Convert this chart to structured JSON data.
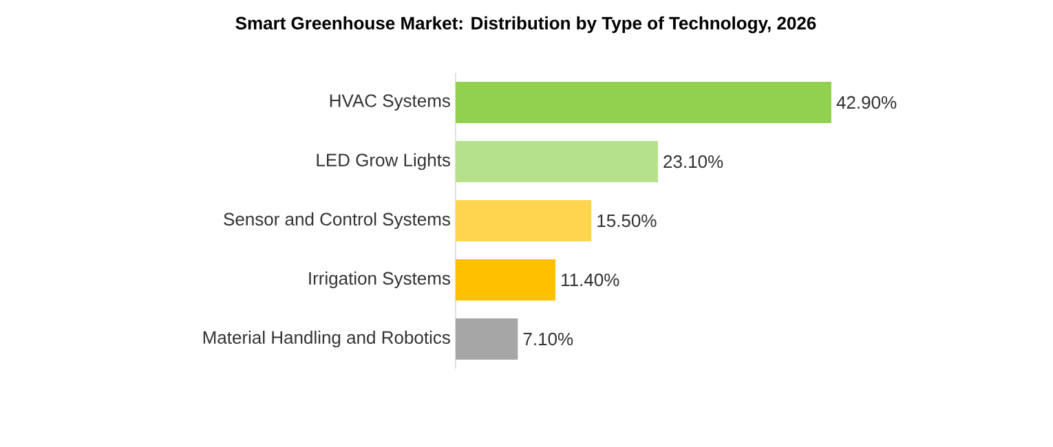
{
  "chart_data": {
    "type": "bar",
    "orientation": "horizontal",
    "title": "Smart Greenhouse Market: Distribution by Type of Technology, 2026",
    "categories": [
      "HVAC Systems",
      "LED Grow Lights",
      "Sensor and Control Systems",
      "Irrigation Systems",
      "Material Handling and Robotics"
    ],
    "values": [
      42.9,
      23.1,
      15.5,
      11.4,
      7.1
    ],
    "value_labels": [
      "42.90%",
      "23.10%",
      "15.50%",
      "11.40%",
      "7.10%"
    ],
    "colors": [
      "#92d050",
      "#b5e08c",
      "#ffd54f",
      "#ffc000",
      "#a6a6a6"
    ]
  }
}
